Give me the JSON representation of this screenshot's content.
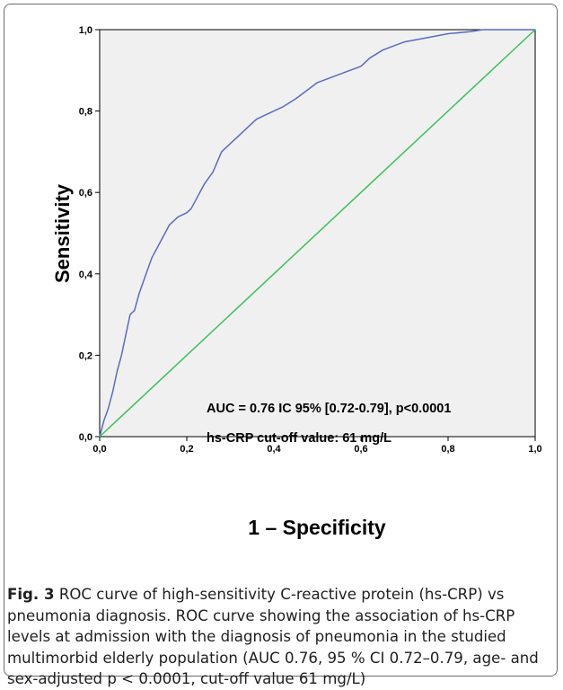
{
  "chart_data": {
    "type": "line",
    "xlabel": "1 – Specificity",
    "ylabel": "Sensitivity",
    "xlim": [
      0,
      1
    ],
    "ylim": [
      0,
      1
    ],
    "x_ticks": [
      "0,0",
      "0,2",
      "0,4",
      "0,6",
      "0,8",
      "1,0"
    ],
    "y_ticks": [
      "0,0",
      "0,2",
      "0,4",
      "0,6",
      "0,8",
      "1,0"
    ],
    "grid": false,
    "annotations": [
      "AUC = 0.76 IC 95% [0.72-0.79], p<0.0001",
      "hs-CRP cut-off value: 61  mg/L"
    ],
    "series": [
      {
        "color": "#5b6bbf",
        "x": [
          0.0,
          0.01,
          0.02,
          0.03,
          0.04,
          0.05,
          0.06,
          0.07,
          0.08,
          0.09,
          0.1,
          0.11,
          0.12,
          0.13,
          0.14,
          0.15,
          0.16,
          0.17,
          0.18,
          0.19,
          0.2,
          0.21,
          0.22,
          0.24,
          0.26,
          0.28,
          0.3,
          0.32,
          0.34,
          0.36,
          0.38,
          0.4,
          0.42,
          0.45,
          0.5,
          0.55,
          0.6,
          0.62,
          0.65,
          0.7,
          0.75,
          0.8,
          0.85,
          0.88,
          0.9,
          0.95,
          1.0
        ],
        "y": [
          0.0,
          0.04,
          0.07,
          0.11,
          0.16,
          0.2,
          0.25,
          0.3,
          0.31,
          0.35,
          0.38,
          0.41,
          0.44,
          0.46,
          0.48,
          0.5,
          0.52,
          0.53,
          0.54,
          0.545,
          0.55,
          0.56,
          0.58,
          0.62,
          0.65,
          0.7,
          0.72,
          0.74,
          0.76,
          0.78,
          0.79,
          0.8,
          0.81,
          0.83,
          0.87,
          0.89,
          0.91,
          0.93,
          0.95,
          0.97,
          0.98,
          0.99,
          0.995,
          1.0,
          1.0,
          1.0,
          1.0
        ]
      },
      {
        "color": "#3fbf5a",
        "x": [
          0,
          1
        ],
        "y": [
          0,
          1
        ]
      }
    ]
  },
  "caption": {
    "label": "Fig. 3",
    "text": "ROC curve of high-sensitivity C-reactive protein (hs-CRP) vs pneumonia diagnosis. ROC curve showing the association of hs-CRP levels at admission with the diagnosis of pneumonia in the studied multimorbid elderly population (AUC 0.76, 95 % CI 0.72–0.79, age- and sex-adjusted p < 0.0001, cut-off value 61 mg/L)"
  }
}
